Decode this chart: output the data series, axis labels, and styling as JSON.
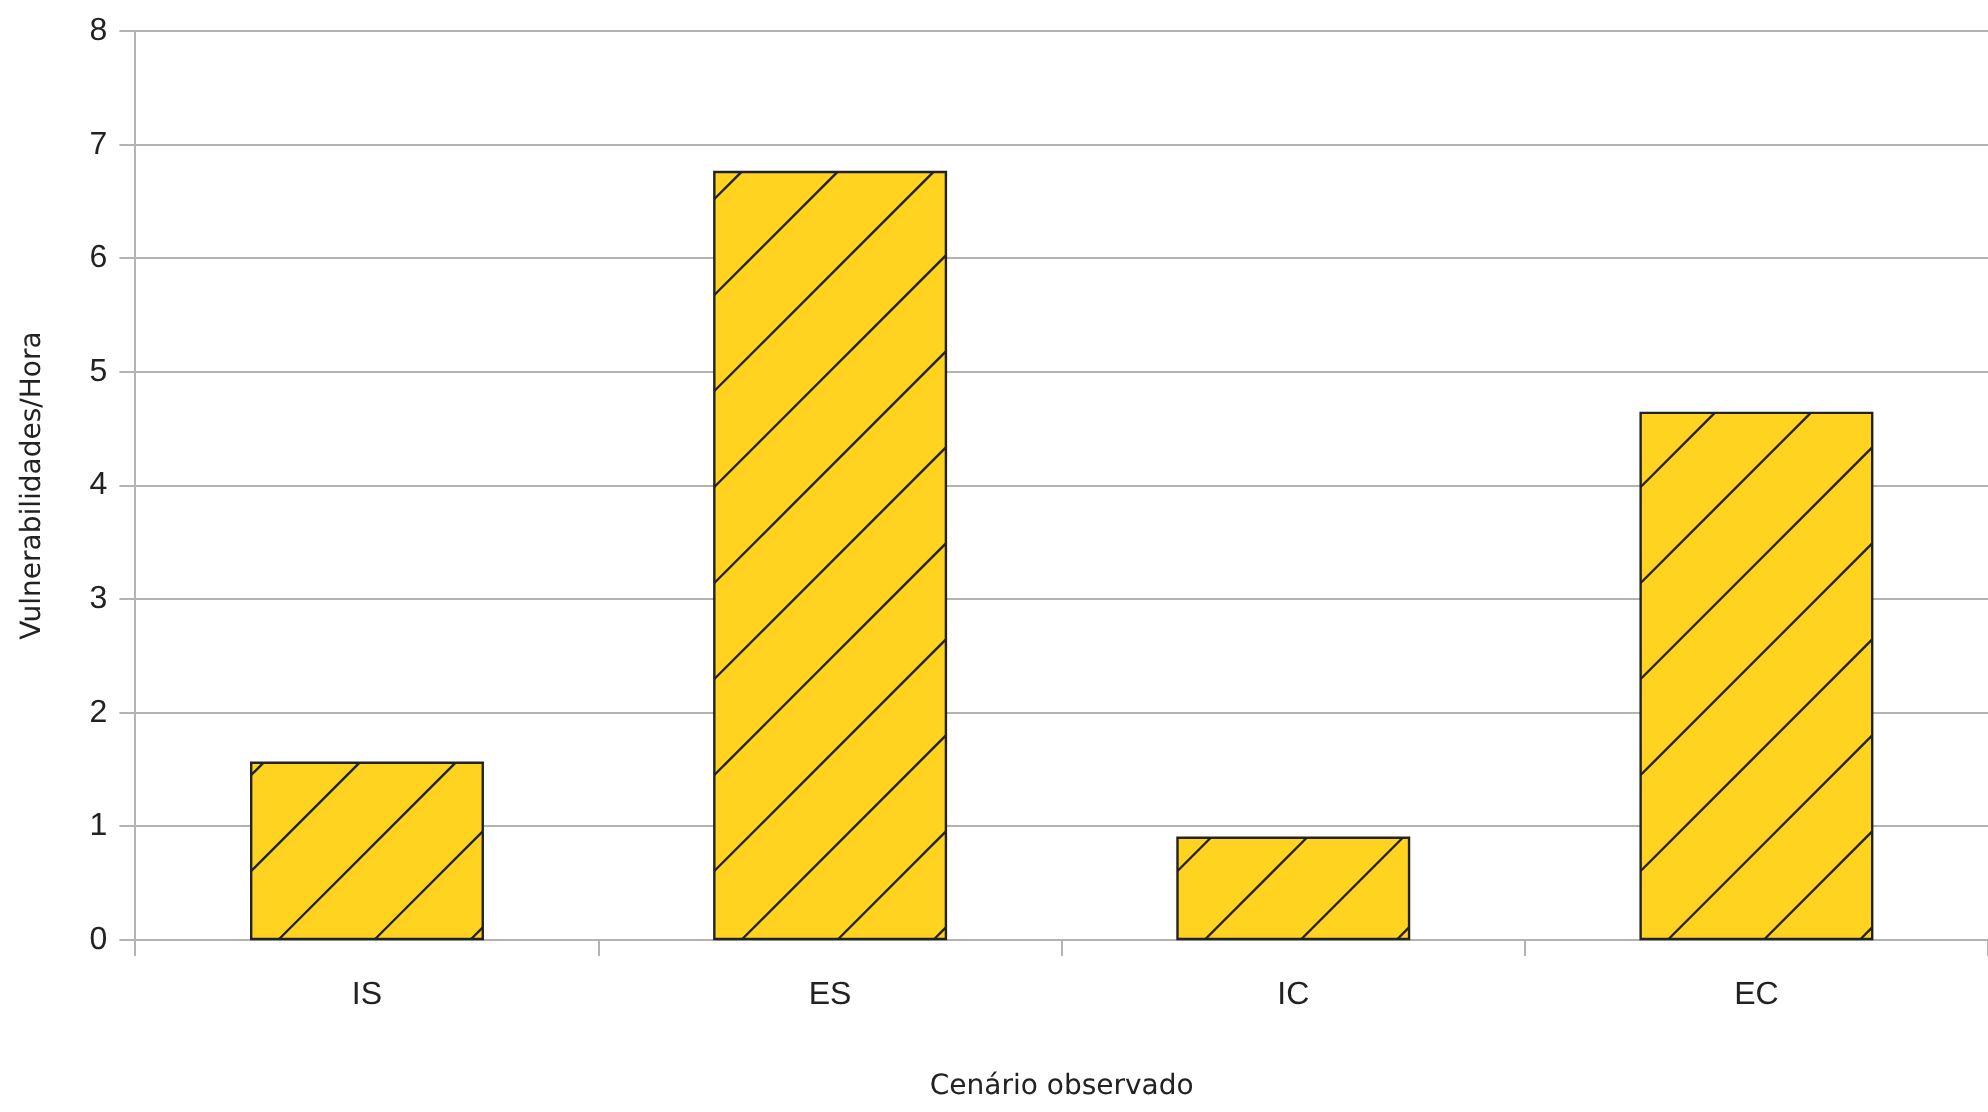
{
  "chart_data": {
    "type": "bar",
    "xlabel": "Cenário observado",
    "ylabel": "Vulnerabilidades/Hora",
    "categories": [
      "IS",
      "ES",
      "IC",
      "EC"
    ],
    "series": [
      {
        "color": "#ffd320",
        "values": [
          1.56,
          6.76,
          0.9,
          4.64
        ]
      }
    ],
    "ylim": [
      0,
      8
    ],
    "yticks": [
      0,
      1,
      2,
      3,
      4,
      5,
      6,
      7,
      8
    ],
    "grid": "y",
    "legend": false
  }
}
